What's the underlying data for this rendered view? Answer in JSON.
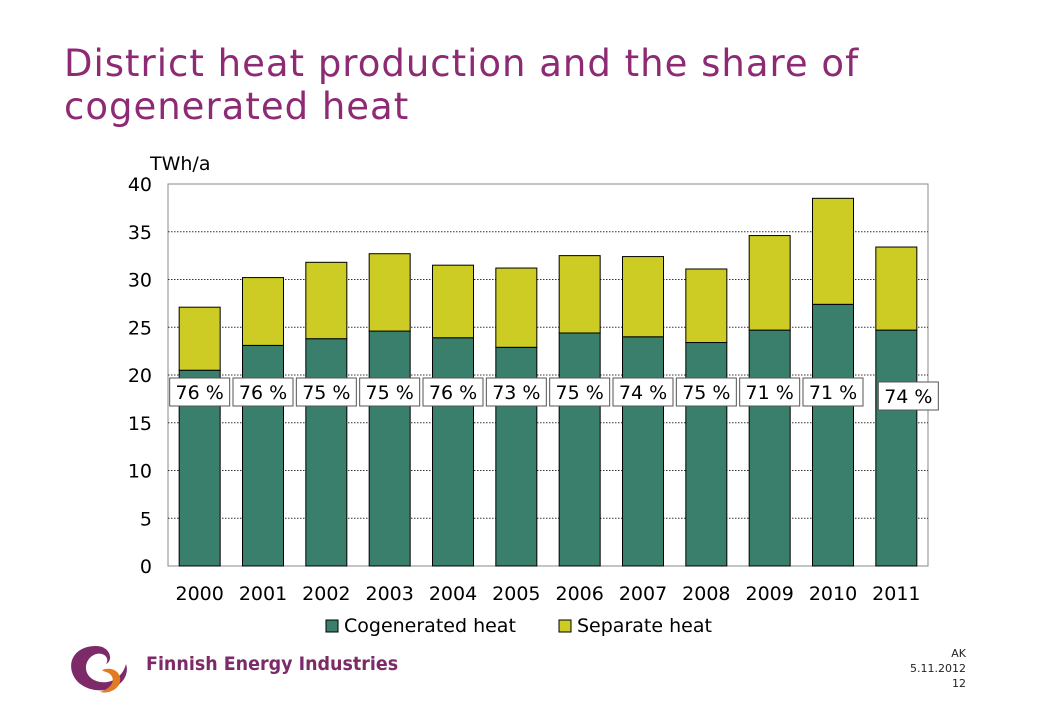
{
  "title": "District heat production and the share of cogenerated heat",
  "footer": {
    "author": "AK",
    "date": "5.11.2012",
    "page": "12"
  },
  "logo": {
    "text": "Finnish Energy Industries"
  },
  "colors": {
    "title": "#8e2a74",
    "cogenerated": "#3a7f6b",
    "separate": "#cccc24"
  },
  "chart_data": {
    "type": "bar",
    "stacked": true,
    "categories": [
      "2000",
      "2001",
      "2002",
      "2003",
      "2004",
      "2005",
      "2006",
      "2007",
      "2008",
      "2009",
      "2010",
      "2011"
    ],
    "series": [
      {
        "name": "Cogenerated heat",
        "values": [
          20.5,
          23.1,
          23.8,
          24.6,
          23.9,
          22.9,
          24.4,
          24.0,
          23.4,
          24.7,
          27.4,
          24.7
        ]
      },
      {
        "name": "Separate heat",
        "values": [
          6.6,
          7.1,
          8.0,
          8.1,
          7.6,
          8.3,
          8.1,
          8.4,
          7.7,
          9.9,
          11.1,
          8.7
        ]
      }
    ],
    "annotations": [
      "76 %",
      "76 %",
      "75 %",
      "75 %",
      "76 %",
      "73 %",
      "75 %",
      "74 %",
      "75 %",
      "71 %",
      "71 %",
      "74 %"
    ],
    "ylabel": "TWh/a",
    "ylim": [
      0,
      40
    ],
    "yticks": [
      0,
      5,
      10,
      15,
      20,
      25,
      30,
      35,
      40
    ],
    "grid": true,
    "legend": "bottom"
  }
}
